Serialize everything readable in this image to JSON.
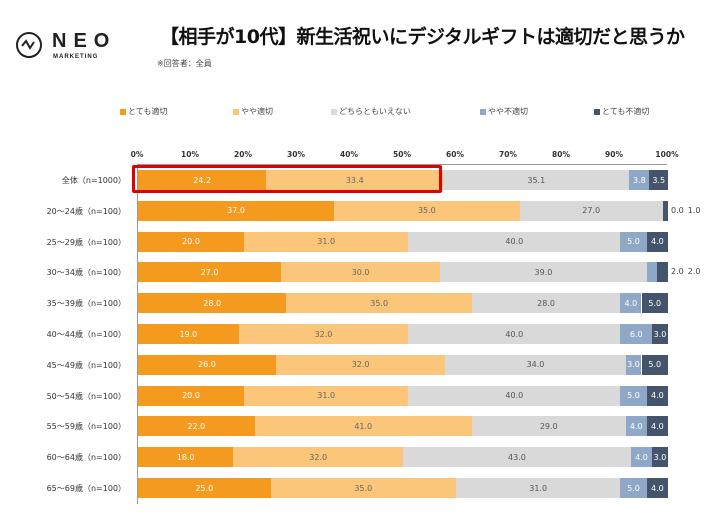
{
  "header": {
    "logo_text": "NEO",
    "logo_sub": "MARKETING",
    "title": "【相手が10代】新生活祝いにデジタルギフトは適切だと思うか",
    "note": "※回答者：全員"
  },
  "chart_data": {
    "type": "bar",
    "orientation": "horizontal-stacked-100",
    "xlim": [
      0,
      100
    ],
    "ticks": [
      "0%",
      "10%",
      "20%",
      "30%",
      "40%",
      "50%",
      "60%",
      "70%",
      "80%",
      "90%",
      "100%"
    ],
    "legend_position": "top",
    "categories": [
      "全体（n=1000）",
      "20～24歳（n=100）",
      "25～29歳（n=100）",
      "30～34歳（n=100）",
      "35～39歳（n=100）",
      "40～44歳（n=100）",
      "45～49歳（n=100）",
      "50～54歳（n=100）",
      "55～59歳（n=100）",
      "60～64歳（n=100）",
      "65～69歳（n=100）"
    ],
    "series": [
      {
        "name": "とても適切",
        "color": "#f39a1f",
        "label_color": "#ffffff",
        "values": [
          24.2,
          37.0,
          20.0,
          27.0,
          28.0,
          19.0,
          26.0,
          20.0,
          22.0,
          18.0,
          25.0
        ]
      },
      {
        "name": "やや適切",
        "color": "#fbc679",
        "label_color": "#666666",
        "values": [
          33.4,
          35.0,
          31.0,
          30.0,
          35.0,
          32.0,
          32.0,
          31.0,
          41.0,
          32.0,
          35.0
        ]
      },
      {
        "name": "どちらともいえない",
        "color": "#d9d9d9",
        "label_color": "#555555",
        "values": [
          35.1,
          27.0,
          40.0,
          39.0,
          28.0,
          40.0,
          34.0,
          40.0,
          29.0,
          43.0,
          31.0
        ]
      },
      {
        "name": "やや不適切",
        "color": "#8fa8c8",
        "label_color": "#ffffff",
        "values": [
          3.8,
          0.0,
          5.0,
          2.0,
          4.0,
          6.0,
          3.0,
          5.0,
          4.0,
          4.0,
          5.0
        ]
      },
      {
        "name": "とても不適切",
        "color": "#44546a",
        "label_color": "#ffffff",
        "values": [
          3.5,
          1.0,
          4.0,
          2.0,
          5.0,
          3.0,
          5.0,
          4.0,
          4.0,
          3.0,
          4.0
        ]
      }
    ],
    "highlight_color": "#e00000"
  }
}
